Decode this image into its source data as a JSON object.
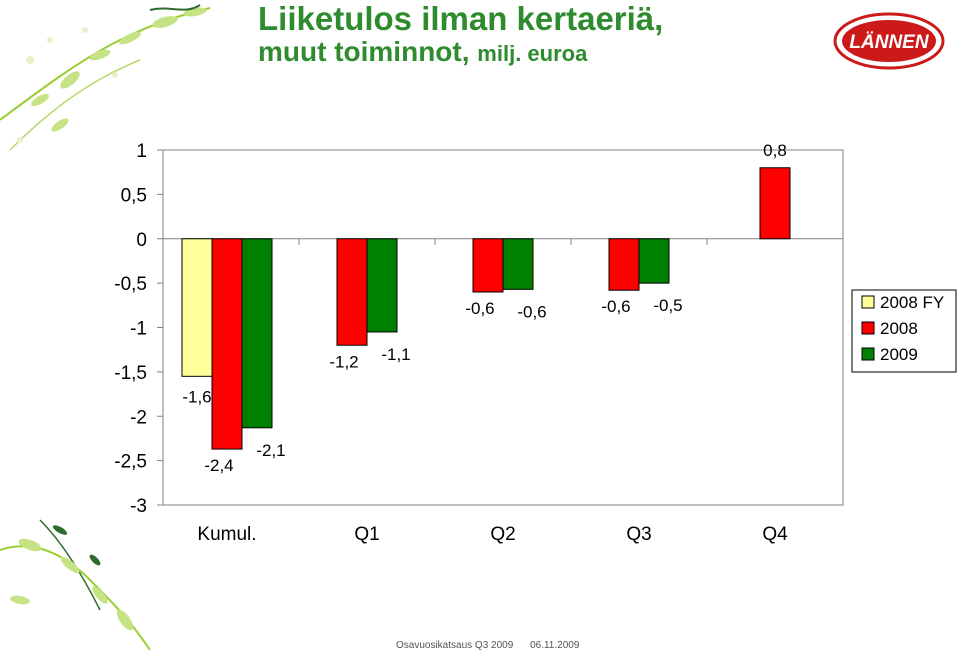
{
  "title": {
    "line1": "Liiketulos ilman kertaeriä,",
    "line2": "muut toiminnot,",
    "unit": "milj. euroa"
  },
  "logo": {
    "text": "LÄNNEN",
    "color": "#cc1a1a"
  },
  "footer": {
    "left": "Osavuosikatsaus Q3 2009",
    "right": "06.11.2009"
  },
  "chart_data": {
    "type": "bar",
    "categories": [
      "Kumul.",
      "Q1",
      "Q2",
      "Q3",
      "Q4"
    ],
    "ylim": [
      -3,
      1
    ],
    "yticks": [
      "1",
      "0,5",
      "0",
      "-0,5",
      "-1",
      "-1,5",
      "-2",
      "-2,5",
      "-3"
    ],
    "series": [
      {
        "name": "2008 FY",
        "color": "#ffff99",
        "values": [
          -1.55,
          null,
          null,
          null,
          null
        ],
        "labels": [
          "-1,6",
          "",
          "",
          "",
          ""
        ]
      },
      {
        "name": "2008",
        "color": "#ff0000",
        "values": [
          -2.37,
          -1.2,
          -0.6,
          -0.58,
          0.8
        ],
        "labels": [
          "-2,4",
          "-1,2",
          "-0,6",
          "-0,6",
          "0,8"
        ]
      },
      {
        "name": "2009",
        "color": "#008000",
        "values": [
          -2.13,
          -1.05,
          -0.57,
          -0.5,
          null
        ],
        "labels": [
          "-2,1",
          "-1,1",
          "-0,6",
          "-0,5",
          ""
        ]
      }
    ],
    "legend_position": "right"
  }
}
